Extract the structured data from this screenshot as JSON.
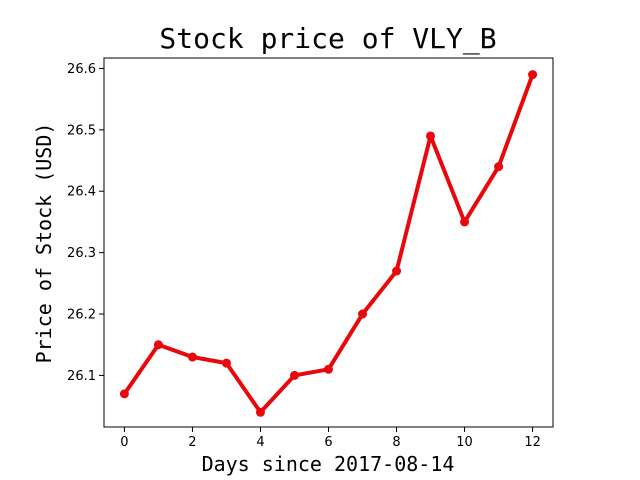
{
  "chart_data": {
    "type": "line",
    "title": "Stock price of VLY_B",
    "xlabel": "Days since 2017-08-14",
    "ylabel": "Price of Stock (USD)",
    "x": [
      0,
      1,
      2,
      3,
      4,
      5,
      6,
      7,
      8,
      9,
      10,
      11,
      12
    ],
    "series": [
      {
        "values": [
          26.07,
          26.15,
          26.13,
          26.12,
          26.04,
          26.1,
          26.11,
          26.2,
          26.27,
          26.49,
          26.35,
          26.44,
          26.59
        ],
        "color": "#e8070b"
      }
    ],
    "xlim": [
      -0.6,
      12.6
    ],
    "ylim": [
      26.016,
      26.617
    ],
    "xticks": [
      0,
      2,
      4,
      6,
      8,
      10,
      12
    ],
    "xtick_labels": [
      "0",
      "2",
      "4",
      "6",
      "8",
      "10",
      "12"
    ],
    "yticks": [
      26.1,
      26.2,
      26.3,
      26.4,
      26.5,
      26.6
    ],
    "ytick_labels": [
      "26.1",
      "26.2",
      "26.3",
      "26.4",
      "26.5",
      "26.6"
    ],
    "grid": false,
    "legend": "none"
  }
}
